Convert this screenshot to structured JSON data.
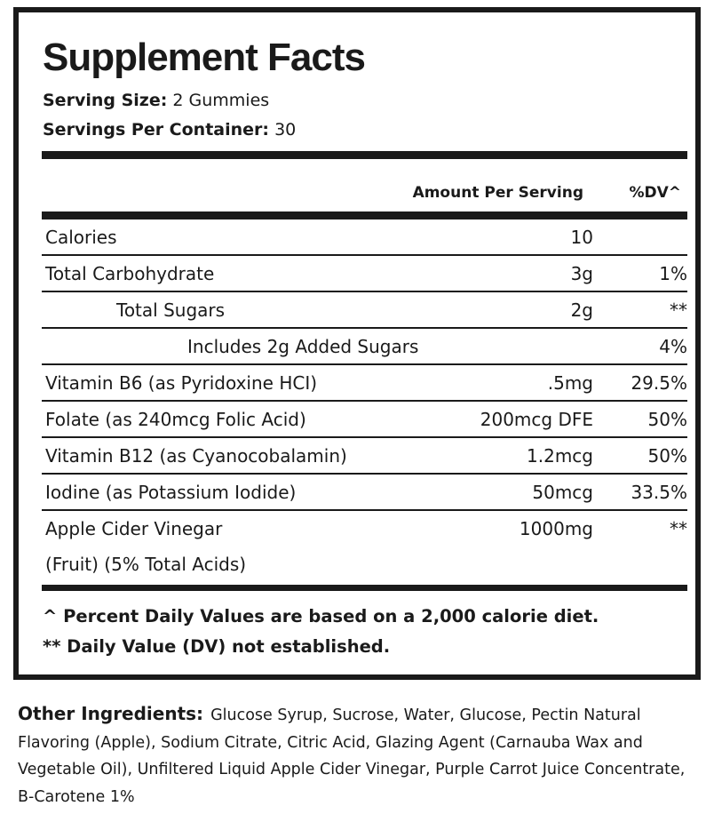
{
  "title": "Supplement Facts",
  "serving_size_label": "Serving Size:",
  "serving_size": "2 Gummies",
  "servings_label": "Servings Per Container:",
  "servings": "30",
  "header": {
    "amount": "Amount Per Serving",
    "dv": "%DV^"
  },
  "rows": [
    {
      "name": "Calories",
      "amount": "10",
      "dv": ""
    },
    {
      "name": "Total Carbohydrate",
      "amount": "3g",
      "dv": "1%"
    },
    {
      "name": "Total Sugars",
      "amount": "2g",
      "dv": "**"
    },
    {
      "name": "Includes 2g Added Sugars",
      "amount": "",
      "dv": "4%"
    },
    {
      "name": "Vitamin B6 (as Pyridoxine HCI)",
      "amount": ".5mg",
      "dv": "29.5%"
    },
    {
      "name": "Folate (as 240mcg Folic Acid)",
      "amount": "200mcg DFE",
      "dv": "50%"
    },
    {
      "name": "Vitamin B12 (as Cyanocobalamin)",
      "amount": "1.2mcg",
      "dv": "50%"
    },
    {
      "name": "Iodine (as Potassium Iodide)",
      "amount": "50mcg",
      "dv": "33.5%"
    },
    {
      "name": "Apple Cider Vinegar",
      "name2": "(Fruit) (5% Total Acids)",
      "amount": "1000mg",
      "dv": "**"
    }
  ],
  "footnotes": [
    "^ Percent Daily Values are based on a 2,000 calorie diet.",
    "** Daily Value (DV) not established."
  ],
  "other_label": "Other Ingredients:",
  "other_text": "Glucose Syrup, Sucrose, Water, Glucose, Pectin Natural Flavoring (Apple), Sodium Citrate, Citric Acid, Glazing Agent (Carnauba Wax and Vegetable Oil), Unfiltered Liquid Apple Cider Vinegar, Purple Carrot Juice Concentrate, B-Carotene 1%"
}
